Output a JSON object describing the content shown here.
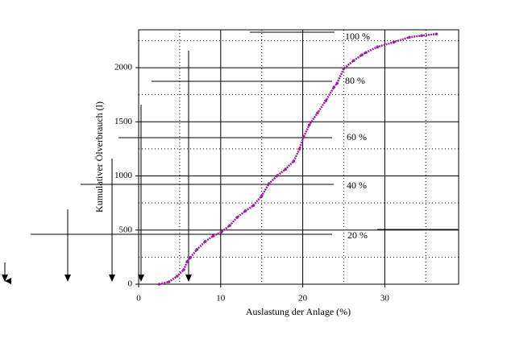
{
  "chart_data": {
    "type": "scatter",
    "xlabel": "Auslastung der Anlage (%)",
    "ylabel": "Kumulativer Ölverbrauch (l)",
    "color": "#a020a0",
    "x": [
      2.5,
      3.7,
      4.7,
      5.5,
      5.9,
      6.3,
      7.1,
      8.1,
      9.1,
      10.1,
      11.1,
      12.0,
      13.0,
      14.0,
      15.0,
      15.9,
      16.9,
      17.9,
      18.9,
      19.6,
      20.1,
      20.8,
      21.8,
      22.8,
      23.8,
      24.2,
      25.0,
      26.2,
      27.2,
      27.7,
      29.1,
      31.1,
      33.0,
      34.5,
      36.3
    ],
    "values": [
      0,
      22,
      74,
      134,
      208,
      245,
      320,
      394,
      446,
      483,
      542,
      617,
      676,
      728,
      817,
      929,
      1003,
      1062,
      1137,
      1248,
      1360,
      1471,
      1582,
      1694,
      1820,
      1857,
      1991,
      2065,
      2117,
      2140,
      2192,
      2236,
      2281,
      2296,
      2311
    ],
    "xlim": [
      0,
      39
    ],
    "ylim": [
      0,
      2350
    ],
    "xticks": [
      0,
      10,
      20,
      30
    ],
    "yticks": [
      0,
      500,
      1000,
      1500,
      2000
    ],
    "xminor": [
      5,
      15,
      25,
      35
    ],
    "yminor": [
      250,
      750,
      1250,
      1750,
      2250
    ],
    "grid": true,
    "annotations": [
      "100 %",
      "80 %",
      "60 %",
      "40 %",
      "20 %"
    ]
  }
}
